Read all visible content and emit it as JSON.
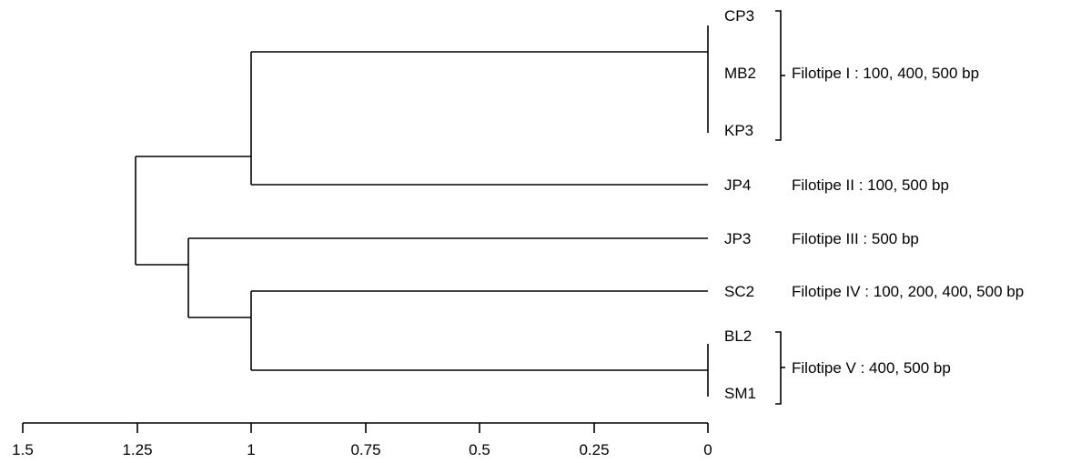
{
  "leaves": [
    {
      "label": "CP3"
    },
    {
      "label": "MB2"
    },
    {
      "label": "KP3"
    },
    {
      "label": "JP4"
    },
    {
      "label": "JP3"
    },
    {
      "label": "SC2"
    },
    {
      "label": "BL2"
    },
    {
      "label": "SM1"
    }
  ],
  "groups": [
    {
      "label": "Filotipe I : 100, 400, 500 bp"
    },
    {
      "label": "Filotipe II : 100, 500 bp"
    },
    {
      "label": "Filotipe III : 500 bp"
    },
    {
      "label": "Filotipe IV : 100, 200, 400, 500 bp"
    },
    {
      "label": "Filotipe V : 400, 500 bp"
    }
  ],
  "axis": {
    "ticks": [
      "1.5",
      "1.25",
      "1",
      "0.75",
      "0.5",
      "0.25",
      "0"
    ]
  },
  "merges": [
    {
      "members": [
        "CP3",
        "MB2",
        "KP3"
      ],
      "height": 0
    },
    {
      "members": [
        "BL2",
        "SM1"
      ],
      "height": 0
    },
    {
      "members": [
        "CP3-KP3",
        "JP4"
      ],
      "height": 1
    },
    {
      "members": [
        "SC2",
        "BL2-SM1"
      ],
      "height": 1
    },
    {
      "members": [
        "JP3",
        "SC2-SM1"
      ],
      "height": 1.14
    },
    {
      "members": [
        "CP3-JP4",
        "JP3-SM1"
      ],
      "height": 1.25
    }
  ]
}
